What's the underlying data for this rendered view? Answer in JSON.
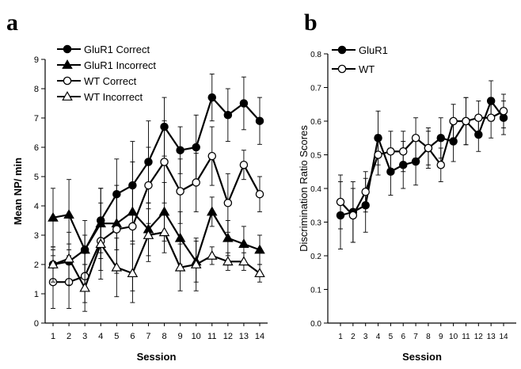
{
  "chart_data": [
    {
      "panel": "a",
      "type": "line",
      "xlabel": "Session",
      "ylabel": "Mean NP/ min",
      "ylim": [
        0,
        9
      ],
      "yticks": [
        0,
        1,
        2,
        3,
        4,
        5,
        6,
        7,
        8,
        9
      ],
      "x": [
        1,
        2,
        3,
        4,
        5,
        6,
        7,
        8,
        9,
        10,
        11,
        12,
        13,
        14
      ],
      "legend_position": "top-left",
      "grid": false,
      "series": [
        {
          "name": "GluR1 Correct",
          "marker": "circle-filled",
          "values": [
            2.0,
            2.1,
            2.5,
            3.5,
            4.4,
            4.7,
            5.5,
            6.7,
            5.9,
            6.0,
            7.7,
            7.1,
            7.5,
            6.9
          ],
          "errors": [
            0.5,
            0.6,
            0.5,
            1.1,
            1.2,
            1.5,
            1.4,
            1.0,
            0.8,
            1.1,
            0.8,
            0.9,
            0.9,
            0.8
          ]
        },
        {
          "name": "GluR1 Incorrect",
          "marker": "triangle-filled",
          "values": [
            3.6,
            3.7,
            2.5,
            3.4,
            3.4,
            3.8,
            3.2,
            3.8,
            2.9,
            2.1,
            3.8,
            2.9,
            2.7,
            2.5
          ],
          "errors": [
            1.0,
            1.2,
            1.0,
            1.2,
            0.9,
            1.0,
            0.9,
            1.0,
            0.9,
            0.7,
            0.5,
            0.6,
            0.6,
            0.5
          ]
        },
        {
          "name": "WT Correct",
          "marker": "circle-open",
          "values": [
            1.4,
            1.4,
            1.6,
            2.8,
            3.2,
            3.3,
            4.7,
            5.5,
            4.5,
            4.8,
            5.7,
            4.1,
            5.4,
            4.4
          ],
          "errors": [
            0.9,
            0.9,
            0.9,
            1.3,
            1.5,
            2.2,
            1.3,
            1.4,
            1.1,
            1.0,
            1.0,
            1.0,
            0.5,
            0.6
          ]
        },
        {
          "name": "WT Incorrect",
          "marker": "triangle-open",
          "values": [
            2.0,
            2.2,
            1.2,
            2.7,
            1.9,
            1.7,
            3.0,
            3.1,
            1.9,
            2.0,
            2.3,
            2.1,
            2.1,
            1.7
          ],
          "errors": [
            0.6,
            0.9,
            0.8,
            0.9,
            1.0,
            1.0,
            0.9,
            0.7,
            0.8,
            0.9,
            0.3,
            0.3,
            0.3,
            0.3
          ]
        }
      ]
    },
    {
      "panel": "b",
      "type": "line",
      "xlabel": "Session",
      "ylabel": "Discrimination Ratio Scores",
      "ylim": [
        0,
        0.8
      ],
      "yticks": [
        0,
        0.1,
        0.2,
        0.3,
        0.4,
        0.5,
        0.6,
        0.7,
        0.8
      ],
      "x": [
        1,
        2,
        3,
        4,
        5,
        6,
        7,
        8,
        9,
        10,
        11,
        12,
        13,
        14
      ],
      "legend_position": "top-left",
      "grid": false,
      "series": [
        {
          "name": "GluR1",
          "marker": "circle-filled",
          "values": [
            0.32,
            0.33,
            0.35,
            0.55,
            0.45,
            0.47,
            0.48,
            0.52,
            0.55,
            0.54,
            0.6,
            0.56,
            0.66,
            0.61
          ],
          "errors": [
            0.1,
            0.09,
            0.08,
            0.08,
            0.07,
            0.07,
            0.07,
            0.06,
            0.06,
            0.06,
            0.07,
            0.05,
            0.06,
            0.05
          ]
        },
        {
          "name": "WT",
          "marker": "circle-open",
          "values": [
            0.36,
            0.32,
            0.39,
            0.5,
            0.51,
            0.51,
            0.55,
            0.52,
            0.47,
            0.6,
            0.6,
            0.61,
            0.61,
            0.63
          ],
          "errors": [
            0.08,
            0.08,
            0.06,
            0.06,
            0.06,
            0.06,
            0.06,
            0.05,
            0.05,
            0.05,
            0.07,
            0.05,
            0.06,
            0.05
          ]
        }
      ]
    }
  ],
  "labels": {
    "panel_a": "a",
    "panel_b": "b"
  }
}
